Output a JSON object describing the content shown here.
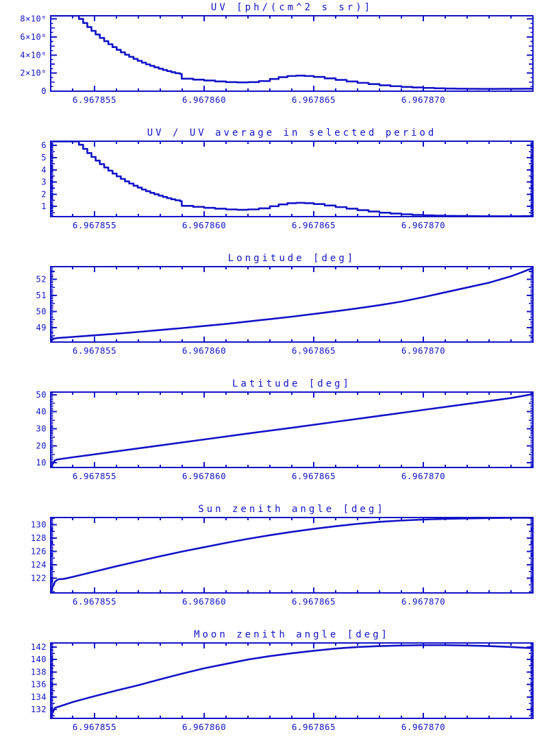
{
  "page": {
    "background": "#ffffff",
    "accent_blue": "#1212c8"
  },
  "chart_data": [
    {
      "type": "line",
      "title": "UV [ph/(cm^2 s sr)]",
      "x_base": 6.967853,
      "x_unit_step": 1e-06,
      "xlim_t": [
        0,
        22
      ],
      "xticks": {
        "t": [
          2,
          7,
          12,
          17
        ],
        "labels": [
          "6.967855",
          "6.967860",
          "6.967865",
          "6.967870"
        ],
        "minor_step": 1
      },
      "ylim": [
        0,
        8.35
      ],
      "y_units": "1e8 ph/(cm^2 s sr)",
      "yticks": {
        "values": [
          0,
          2,
          4,
          6,
          8
        ],
        "labels": [
          "0",
          "2×10⁸",
          "4×10⁸",
          "6×10⁸",
          "8×10⁸"
        ],
        "minor_step": 0.5,
        "mid_step": 1
      },
      "step_render": true,
      "x": [
        0.05,
        1.1,
        1.29,
        1.48,
        1.67,
        1.86,
        2.05,
        2.24,
        2.44,
        2.63,
        2.82,
        3.01,
        3.2,
        3.39,
        3.58,
        3.78,
        3.97,
        4.16,
        4.35,
        4.54,
        4.73,
        4.93,
        5.12,
        5.31,
        5.5,
        5.69,
        5.9,
        5.98,
        6.5,
        7.0,
        7.5,
        8.0,
        8.5,
        9.0,
        9.5,
        10.0,
        10.4,
        10.8,
        11.2,
        11.6,
        12.0,
        12.5,
        13.0,
        13.5,
        14.0,
        14.5,
        15.0,
        15.5,
        16.0,
        16.5,
        17.0,
        17.5,
        18.0,
        18.5,
        19.0,
        19.5,
        20.0,
        20.5,
        21.0,
        21.5,
        22.0
      ],
      "y": [
        8.35,
        8.35,
        8.0,
        7.55,
        7.1,
        6.68,
        6.28,
        5.9,
        5.54,
        5.2,
        4.88,
        4.58,
        4.3,
        4.04,
        3.8,
        3.57,
        3.36,
        3.16,
        2.97,
        2.8,
        2.64,
        2.49,
        2.35,
        2.22,
        2.1,
        1.99,
        1.9,
        1.38,
        1.28,
        1.18,
        1.08,
        1.0,
        0.97,
        1.0,
        1.12,
        1.35,
        1.55,
        1.68,
        1.72,
        1.68,
        1.58,
        1.42,
        1.25,
        1.08,
        0.92,
        0.78,
        0.65,
        0.55,
        0.47,
        0.41,
        0.36,
        0.32,
        0.29,
        0.27,
        0.26,
        0.25,
        0.25,
        0.26,
        0.26,
        0.27,
        0.28
      ]
    },
    {
      "type": "line",
      "title": "UV / UV average in selected period",
      "x_base": 6.967853,
      "x_unit_step": 1e-06,
      "xlim_t": [
        0,
        22
      ],
      "xticks": {
        "t": [
          2,
          7,
          12,
          17
        ],
        "labels": [
          "6.967855",
          "6.967860",
          "6.967865",
          "6.967870"
        ],
        "minor_step": 1
      },
      "ylim": [
        0.17,
        6.35
      ],
      "yticks": {
        "values": [
          1,
          2,
          3,
          4,
          5,
          6
        ],
        "labels": [
          "1",
          "2",
          "3",
          "4",
          "5",
          "6"
        ],
        "minor_step": 0.1,
        "mid_step": 0.5
      },
      "step_render": true,
      "x": [
        0.05,
        1.1,
        1.29,
        1.48,
        1.67,
        1.86,
        2.05,
        2.24,
        2.44,
        2.63,
        2.82,
        3.01,
        3.2,
        3.39,
        3.58,
        3.78,
        3.97,
        4.16,
        4.35,
        4.54,
        4.73,
        4.93,
        5.12,
        5.31,
        5.5,
        5.69,
        5.9,
        5.98,
        6.5,
        7.0,
        7.5,
        8.0,
        8.5,
        9.0,
        9.5,
        10.0,
        10.4,
        10.8,
        11.2,
        11.6,
        12.0,
        12.5,
        13.0,
        13.5,
        14.0,
        14.5,
        15.0,
        15.5,
        16.0,
        16.5,
        17.0,
        17.5,
        18.0,
        18.5,
        19.0,
        19.5,
        20.0,
        20.5,
        21.0,
        21.5,
        22.0
      ],
      "y": [
        6.33,
        6.33,
        6.06,
        5.72,
        5.38,
        5.06,
        4.76,
        4.47,
        4.2,
        3.94,
        3.7,
        3.47,
        3.26,
        3.06,
        2.88,
        2.7,
        2.55,
        2.39,
        2.25,
        2.12,
        2.0,
        1.89,
        1.78,
        1.68,
        1.59,
        1.51,
        1.44,
        1.05,
        0.97,
        0.89,
        0.82,
        0.76,
        0.73,
        0.76,
        0.85,
        1.02,
        1.17,
        1.27,
        1.3,
        1.27,
        1.2,
        1.08,
        0.95,
        0.82,
        0.7,
        0.59,
        0.49,
        0.42,
        0.36,
        0.31,
        0.27,
        0.25,
        0.23,
        0.22,
        0.21,
        0.2,
        0.2,
        0.2,
        0.2,
        0.21,
        0.21
      ]
    },
    {
      "type": "line",
      "title": "Longitude [deg]",
      "x_base": 6.967853,
      "x_unit_step": 1e-06,
      "xlim_t": [
        0,
        22
      ],
      "xticks": {
        "t": [
          2,
          7,
          12,
          17
        ],
        "labels": [
          "6.967855",
          "6.967860",
          "6.967865",
          "6.967870"
        ],
        "minor_step": 1
      },
      "ylim": [
        48.1,
        52.8
      ],
      "yticks": {
        "values": [
          49,
          50,
          51,
          52
        ],
        "labels": [
          "49",
          "50",
          "51",
          "52"
        ],
        "minor_step": 0.1,
        "mid_step": 0.5
      },
      "step_render": false,
      "x": [
        0,
        0.12,
        0.3,
        1,
        2,
        3,
        4,
        5,
        6,
        7,
        8,
        9,
        10,
        11,
        12,
        13,
        14,
        15,
        16,
        17,
        18,
        19,
        20,
        20.5,
        21,
        21.5,
        22
      ],
      "y": [
        48.13,
        48.3,
        48.35,
        48.42,
        48.52,
        48.62,
        48.73,
        48.85,
        48.97,
        49.1,
        49.23,
        49.38,
        49.53,
        49.68,
        49.85,
        50.02,
        50.2,
        50.4,
        50.62,
        50.9,
        51.2,
        51.5,
        51.8,
        52.0,
        52.2,
        52.45,
        52.72
      ]
    },
    {
      "type": "line",
      "title": "Latitude [deg]",
      "x_base": 6.967853,
      "x_unit_step": 1e-06,
      "xlim_t": [
        0,
        22
      ],
      "xticks": {
        "t": [
          2,
          7,
          12,
          17
        ],
        "labels": [
          "6.967855",
          "6.967860",
          "6.967865",
          "6.967870"
        ],
        "minor_step": 1
      },
      "ylim": [
        7.2,
        51.6
      ],
      "yticks": {
        "values": [
          10,
          20,
          30,
          40,
          50
        ],
        "labels": [
          "10",
          "20",
          "30",
          "40",
          "50"
        ],
        "minor_step": 1,
        "mid_step": 5
      },
      "step_render": false,
      "x": [
        0,
        0.1,
        0.2,
        0.3,
        1,
        3,
        5,
        7,
        9,
        11,
        13,
        15,
        17,
        19,
        21,
        22
      ],
      "y": [
        7.6,
        9.5,
        11.5,
        11.9,
        13.2,
        16.7,
        20.2,
        23.7,
        27.2,
        30.6,
        34.1,
        37.6,
        41.1,
        44.6,
        48.1,
        50.4
      ]
    },
    {
      "type": "line",
      "title": "Sun zenith angle [deg]",
      "x_base": 6.967853,
      "x_unit_step": 1e-06,
      "xlim_t": [
        0,
        22
      ],
      "xticks": {
        "t": [
          2,
          7,
          12,
          17
        ],
        "labels": [
          "6.967855",
          "6.967860",
          "6.967865",
          "6.967870"
        ],
        "minor_step": 1
      },
      "ylim": [
        119.8,
        131.1
      ],
      "yticks": {
        "values": [
          122,
          124,
          126,
          128,
          130
        ],
        "labels": [
          "122",
          "124",
          "126",
          "128",
          "130"
        ],
        "minor_step": 0.2,
        "mid_step": 1
      },
      "step_render": false,
      "x": [
        0,
        0.1,
        0.2,
        0.35,
        0.6,
        1,
        2,
        3,
        4,
        5,
        6,
        7,
        8,
        9,
        10,
        11,
        12,
        13,
        14,
        15,
        16,
        17,
        18,
        19,
        20,
        21,
        22
      ],
      "y": [
        119.9,
        120.8,
        121.5,
        121.85,
        121.9,
        122.2,
        123.0,
        123.8,
        124.55,
        125.3,
        126.0,
        126.65,
        127.3,
        127.9,
        128.45,
        128.95,
        129.4,
        129.8,
        130.15,
        130.45,
        130.65,
        130.8,
        130.9,
        130.97,
        131.02,
        131.05,
        131.07
      ]
    },
    {
      "type": "line",
      "title": "Moon zenith angle [deg]",
      "x_base": 6.967853,
      "x_unit_step": 1e-06,
      "xlim_t": [
        0,
        22
      ],
      "xticks": {
        "t": [
          2,
          7,
          12,
          17
        ],
        "labels": [
          "6.967855",
          "6.967860",
          "6.967865",
          "6.967870"
        ],
        "minor_step": 1
      },
      "ylim": [
        130.6,
        142.65
      ],
      "yticks": {
        "values": [
          132,
          134,
          136,
          138,
          140,
          142
        ],
        "labels": [
          "132",
          "134",
          "136",
          "138",
          "140",
          "142"
        ],
        "minor_step": 0.2,
        "mid_step": 1
      },
      "step_render": false,
      "x": [
        0,
        0.1,
        0.2,
        0.4,
        1,
        2,
        3,
        4,
        5,
        6,
        7,
        8,
        9,
        10,
        11,
        12,
        13,
        14,
        15,
        16,
        17,
        18,
        19,
        20,
        21,
        21.5,
        22
      ],
      "y": [
        130.7,
        131.6,
        132.3,
        132.5,
        133.2,
        134.15,
        135.05,
        135.9,
        136.85,
        137.75,
        138.6,
        139.3,
        140.0,
        140.55,
        141.0,
        141.4,
        141.75,
        142.0,
        142.15,
        142.25,
        142.3,
        142.3,
        142.25,
        142.15,
        142.0,
        141.9,
        141.8
      ]
    }
  ]
}
